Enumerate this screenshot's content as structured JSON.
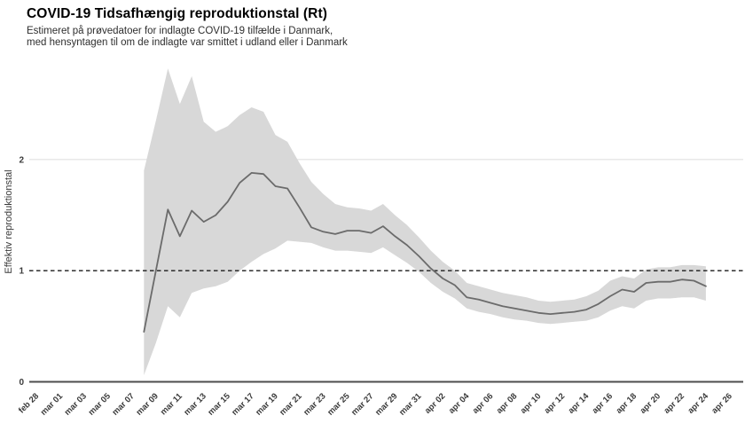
{
  "chart_data": {
    "type": "line",
    "title": "COVID-19 Tidsafhængig reproduktionstal (Rt)",
    "subtitle_line1": "Estimeret på prøvedatoer for indlagte COVID-19 tilfælde i Danmark,",
    "subtitle_line2": "med hensyntagen til om de indlagte var smittet i udland eller i Danmark",
    "xlabel": "",
    "ylabel": "Effektiv reproduktionstal",
    "ylim": [
      0,
      2.92
    ],
    "y_ticks": [
      "0",
      "1",
      "2"
    ],
    "grid": "light solid gridline at y=2, dashed reference line at y=1, dark solid axis line at y=0",
    "legend": "none",
    "reference_line_y": 1,
    "x_tick_step_days": 2,
    "data_start_day_offset": 9,
    "x_tick_labels": [
      "feb 28",
      "mar 01",
      "mar 03",
      "mar 05",
      "mar 07",
      "mar 09",
      "mar 11",
      "mar 13",
      "mar 15",
      "mar 17",
      "mar 19",
      "mar 21",
      "mar 23",
      "mar 25",
      "mar 27",
      "mar 29",
      "mar 31",
      "apr 02",
      "apr 04",
      "apr 06",
      "apr 08",
      "apr 10",
      "apr 12",
      "apr 14",
      "apr 16",
      "apr 18",
      "apr 20",
      "apr 22",
      "apr 24",
      "apr 26"
    ],
    "dates": [
      "mar 08",
      "mar 09",
      "mar 10",
      "mar 11",
      "mar 12",
      "mar 13",
      "mar 14",
      "mar 15",
      "mar 16",
      "mar 17",
      "mar 18",
      "mar 19",
      "mar 20",
      "mar 21",
      "mar 22",
      "mar 23",
      "mar 24",
      "mar 25",
      "mar 26",
      "mar 27",
      "mar 28",
      "mar 29",
      "mar 30",
      "mar 31",
      "apr 01",
      "apr 02",
      "apr 03",
      "apr 04",
      "apr 05",
      "apr 06",
      "apr 07",
      "apr 08",
      "apr 09",
      "apr 10",
      "apr 11",
      "apr 12",
      "apr 13",
      "apr 14",
      "apr 15",
      "apr 16",
      "apr 17",
      "apr 18",
      "apr 19",
      "apr 20",
      "apr 21",
      "apr 22",
      "apr 23",
      "apr 24"
    ],
    "series": [
      {
        "name": "rt_median",
        "values": [
          0.45,
          1.0,
          1.55,
          1.31,
          1.54,
          1.44,
          1.5,
          1.62,
          1.79,
          1.88,
          1.87,
          1.76,
          1.74,
          1.57,
          1.39,
          1.35,
          1.33,
          1.36,
          1.36,
          1.34,
          1.4,
          1.31,
          1.23,
          1.13,
          1.02,
          0.93,
          0.87,
          0.76,
          0.74,
          0.71,
          0.68,
          0.66,
          0.64,
          0.62,
          0.61,
          0.62,
          0.63,
          0.65,
          0.7,
          0.77,
          0.83,
          0.81,
          0.89,
          0.9,
          0.9,
          0.92,
          0.91,
          0.86
        ]
      },
      {
        "name": "ci_lower",
        "values": [
          0.06,
          0.35,
          0.68,
          0.58,
          0.8,
          0.84,
          0.86,
          0.9,
          1.0,
          1.08,
          1.15,
          1.2,
          1.27,
          1.26,
          1.25,
          1.21,
          1.18,
          1.18,
          1.17,
          1.16,
          1.21,
          1.14,
          1.07,
          0.99,
          0.89,
          0.81,
          0.75,
          0.66,
          0.63,
          0.61,
          0.58,
          0.56,
          0.55,
          0.53,
          0.52,
          0.53,
          0.54,
          0.55,
          0.58,
          0.64,
          0.68,
          0.66,
          0.73,
          0.75,
          0.75,
          0.76,
          0.76,
          0.73
        ]
      },
      {
        "name": "ci_upper",
        "values": [
          1.9,
          2.35,
          2.82,
          2.5,
          2.75,
          2.34,
          2.25,
          2.3,
          2.4,
          2.47,
          2.43,
          2.22,
          2.16,
          1.97,
          1.8,
          1.69,
          1.6,
          1.57,
          1.56,
          1.54,
          1.6,
          1.5,
          1.41,
          1.3,
          1.18,
          1.08,
          1.0,
          0.89,
          0.86,
          0.83,
          0.8,
          0.78,
          0.76,
          0.73,
          0.72,
          0.73,
          0.74,
          0.77,
          0.82,
          0.91,
          0.95,
          0.93,
          1.01,
          1.03,
          1.03,
          1.05,
          1.05,
          1.04
        ]
      }
    ],
    "colors": {
      "background": "#ffffff",
      "band": "#d8d8d8",
      "line": "#6b6b6b",
      "reference_dashed": "#1a1a1a",
      "axis": "#4d4d4d",
      "gridline": "#dcdcdc",
      "tick_text": "#3a3a3a",
      "title_text": "#000000",
      "subtitle_text": "#2e2e2e"
    }
  }
}
